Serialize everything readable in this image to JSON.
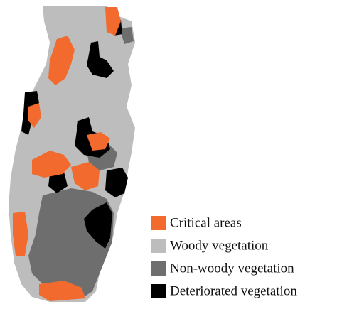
{
  "legend": {
    "items": [
      {
        "label": "Critical areas",
        "color": "#f26a2e"
      },
      {
        "label": "Woody vegetation",
        "color": "#bdbdbd"
      },
      {
        "label": "Non-woody vegetation",
        "color": "#6e6e6e"
      },
      {
        "label": "Deteriorated vegetation",
        "color": "#000000"
      }
    ]
  }
}
